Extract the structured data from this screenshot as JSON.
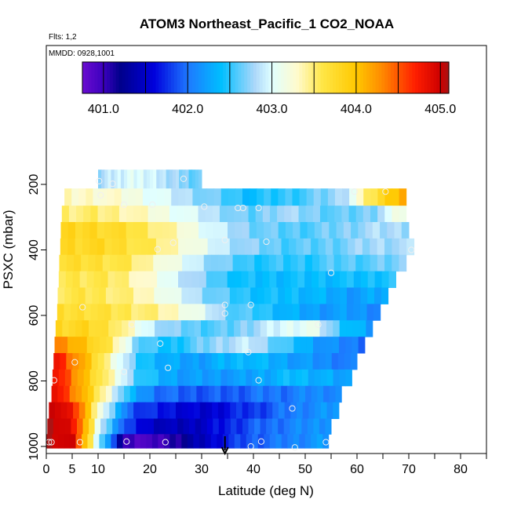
{
  "chart_data": {
    "type": "heatmap",
    "title": "ATOM3 Northeast_Pacific_1 CO2_NOAA",
    "flights_text": "Flts: 1,2",
    "dates_text": "MMDD: 0928,1001",
    "xlabel": "Latitude (deg N)",
    "ylabel": "PSXC (mbar)",
    "xlim": [
      0,
      85
    ],
    "ylim": [
      1010,
      50
    ],
    "y_reversed": true,
    "x_ticks": [
      0,
      5,
      10,
      20,
      30,
      40,
      50,
      60,
      70,
      80
    ],
    "x_minor_ticks": [
      15,
      25,
      35,
      45,
      55,
      65,
      75,
      85
    ],
    "y_ticks": [
      200,
      400,
      600,
      800,
      1000
    ],
    "colorbar": {
      "min": 401.0,
      "max": 405.0,
      "ticks": [
        "401.0",
        "402.0",
        "403.0",
        "404.0",
        "405.0"
      ],
      "tick_values": [
        401,
        402,
        403,
        404,
        405
      ],
      "boundaries": [
        400.75,
        401.0,
        401.5,
        402.0,
        402.5,
        403.0,
        403.5,
        404.0,
        404.5,
        405.0,
        405.1
      ],
      "colors": [
        "#6a0dd0",
        "#00008b",
        "#1e90ff",
        "#87cefa",
        "#fffacd",
        "#ffd700",
        "#ff8c00",
        "#ff0000",
        "#b22222"
      ]
    },
    "profile_rows": [
      {
        "p": 185,
        "lat_min": 10.0,
        "lat_max": 30.0,
        "values": [
          402.8,
          402.9,
          403.0,
          403.0,
          402.9,
          402.8,
          402.7,
          402.6
        ]
      },
      {
        "p": 240,
        "lat_min": 3.5,
        "lat_max": 69.5,
        "values": [
          403.3,
          403.3,
          403.2,
          403.0,
          402.8,
          402.6,
          402.4,
          402.5,
          402.6,
          402.8,
          403.6,
          404.2
        ]
      },
      {
        "p": 290,
        "lat_min": 3.0,
        "lat_max": 69.5,
        "values": [
          403.5,
          403.5,
          403.4,
          403.2,
          403.0,
          402.8,
          402.6,
          402.8,
          402.7,
          402.6,
          402.7,
          403.2
        ]
      },
      {
        "p": 340,
        "lat_min": 2.8,
        "lat_max": 70.0,
        "values": [
          403.8,
          403.8,
          403.7,
          403.5,
          403.2,
          402.9,
          402.7,
          402.6,
          402.6,
          402.7,
          402.8,
          402.8
        ]
      },
      {
        "p": 390,
        "lat_min": 2.7,
        "lat_max": 71.0,
        "values": [
          403.8,
          403.8,
          403.7,
          403.5,
          403.2,
          402.9,
          402.7,
          402.6,
          402.6,
          402.7,
          402.8,
          402.8
        ]
      },
      {
        "p": 440,
        "lat_min": 2.5,
        "lat_max": 69.5,
        "values": [
          403.7,
          403.7,
          403.6,
          403.3,
          403.0,
          402.7,
          402.5,
          402.5,
          402.5,
          402.6,
          402.6,
          402.7
        ]
      },
      {
        "p": 490,
        "lat_min": 2.4,
        "lat_max": 67.5,
        "values": [
          403.6,
          403.6,
          403.5,
          403.2,
          402.9,
          402.6,
          402.4,
          402.4,
          402.4,
          402.4,
          402.4,
          402.5
        ]
      },
      {
        "p": 540,
        "lat_min": 2.2,
        "lat_max": 66.0,
        "values": [
          403.6,
          403.6,
          403.5,
          403.3,
          403.0,
          402.7,
          402.5,
          402.4,
          402.4,
          402.3,
          402.2,
          402.3
        ]
      },
      {
        "p": 590,
        "lat_min": 2.1,
        "lat_max": 64.5,
        "values": [
          403.7,
          403.7,
          403.6,
          403.5,
          403.3,
          403.0,
          402.6,
          402.5,
          402.3,
          402.2,
          402.2,
          402.1
        ]
      },
      {
        "p": 640,
        "lat_min": 1.8,
        "lat_max": 63.0,
        "values": [
          403.8,
          403.8,
          403.6,
          403.0,
          402.7,
          402.6,
          402.6,
          402.8,
          403.0,
          403.1,
          402.5,
          402.2
        ]
      },
      {
        "p": 690,
        "lat_min": 1.6,
        "lat_max": 61.5,
        "values": [
          404.3,
          404.0,
          403.5,
          402.6,
          402.4,
          402.6,
          402.8,
          402.9,
          402.6,
          402.3,
          402.1,
          402.0
        ]
      },
      {
        "p": 740,
        "lat_min": 1.4,
        "lat_max": 60.0,
        "values": [
          404.8,
          404.1,
          403.3,
          402.5,
          402.3,
          402.2,
          402.3,
          402.4,
          402.3,
          402.2,
          402.1,
          402.0
        ]
      },
      {
        "p": 790,
        "lat_min": 1.2,
        "lat_max": 59.0,
        "values": [
          404.8,
          404.1,
          403.4,
          402.6,
          402.3,
          402.2,
          402.2,
          402.2,
          402.3,
          402.4,
          402.3,
          402.2
        ]
      },
      {
        "p": 840,
        "lat_min": 1.0,
        "lat_max": 57.0,
        "values": [
          404.9,
          404.2,
          403.3,
          402.3,
          402.0,
          401.9,
          401.9,
          401.9,
          402.0,
          402.0,
          402.1,
          402.1
        ]
      },
      {
        "p": 890,
        "lat_min": 0.5,
        "lat_max": 56.5,
        "values": [
          405.1,
          404.6,
          403.0,
          401.9,
          401.7,
          401.6,
          401.5,
          401.7,
          401.8,
          402.0,
          402.1,
          402.2
        ]
      },
      {
        "p": 940,
        "lat_min": 0.2,
        "lat_max": 55.0,
        "values": [
          405.1,
          404.8,
          402.9,
          401.8,
          401.5,
          401.4,
          401.5,
          401.7,
          401.9,
          402.0,
          402.1,
          402.2
        ]
      },
      {
        "p": 985,
        "lat_min": 0.0,
        "lat_max": 54.5,
        "values": [
          405.1,
          404.9,
          402.8,
          401.0,
          400.9,
          401.1,
          401.4,
          401.7,
          401.9,
          402.0,
          402.1,
          402.2
        ]
      }
    ],
    "measurement_points": [
      {
        "lat": 10.2,
        "p": 190
      },
      {
        "lat": 12.8,
        "p": 198
      },
      {
        "lat": 26.5,
        "p": 183
      },
      {
        "lat": 10.5,
        "p": 233
      },
      {
        "lat": 15.0,
        "p": 262
      },
      {
        "lat": 20.5,
        "p": 262
      },
      {
        "lat": 30.5,
        "p": 268
      },
      {
        "lat": 37.0,
        "p": 272
      },
      {
        "lat": 38.0,
        "p": 272
      },
      {
        "lat": 41.0,
        "p": 272
      },
      {
        "lat": 59.5,
        "p": 222
      },
      {
        "lat": 65.5,
        "p": 222
      },
      {
        "lat": 34.5,
        "p": 370
      },
      {
        "lat": 42.5,
        "p": 375
      },
      {
        "lat": 24.5,
        "p": 378
      },
      {
        "lat": 21.5,
        "p": 398
      },
      {
        "lat": 70.5,
        "p": 400
      },
      {
        "lat": 55.0,
        "p": 470
      },
      {
        "lat": 7.0,
        "p": 575
      },
      {
        "lat": 34.5,
        "p": 568
      },
      {
        "lat": 39.5,
        "p": 568
      },
      {
        "lat": 34.5,
        "p": 594
      },
      {
        "lat": 16.5,
        "p": 628
      },
      {
        "lat": 52.5,
        "p": 628
      },
      {
        "lat": 22.0,
        "p": 686
      },
      {
        "lat": 39.0,
        "p": 712
      },
      {
        "lat": 5.5,
        "p": 743
      },
      {
        "lat": 23.5,
        "p": 760
      },
      {
        "lat": 15.0,
        "p": 772
      },
      {
        "lat": 1.5,
        "p": 798
      },
      {
        "lat": 41.0,
        "p": 798
      },
      {
        "lat": 47.5,
        "p": 884
      },
      {
        "lat": 0.5,
        "p": 987
      },
      {
        "lat": 1.0,
        "p": 987
      },
      {
        "lat": 6.5,
        "p": 987
      },
      {
        "lat": 15.5,
        "p": 985
      },
      {
        "lat": 23.0,
        "p": 987
      },
      {
        "lat": 39.5,
        "p": 1000
      },
      {
        "lat": 41.5,
        "p": 985
      },
      {
        "lat": 48.0,
        "p": 1003
      },
      {
        "lat": 54.0,
        "p": 987
      }
    ],
    "arrow_lat": 34.5,
    "grid": false
  }
}
